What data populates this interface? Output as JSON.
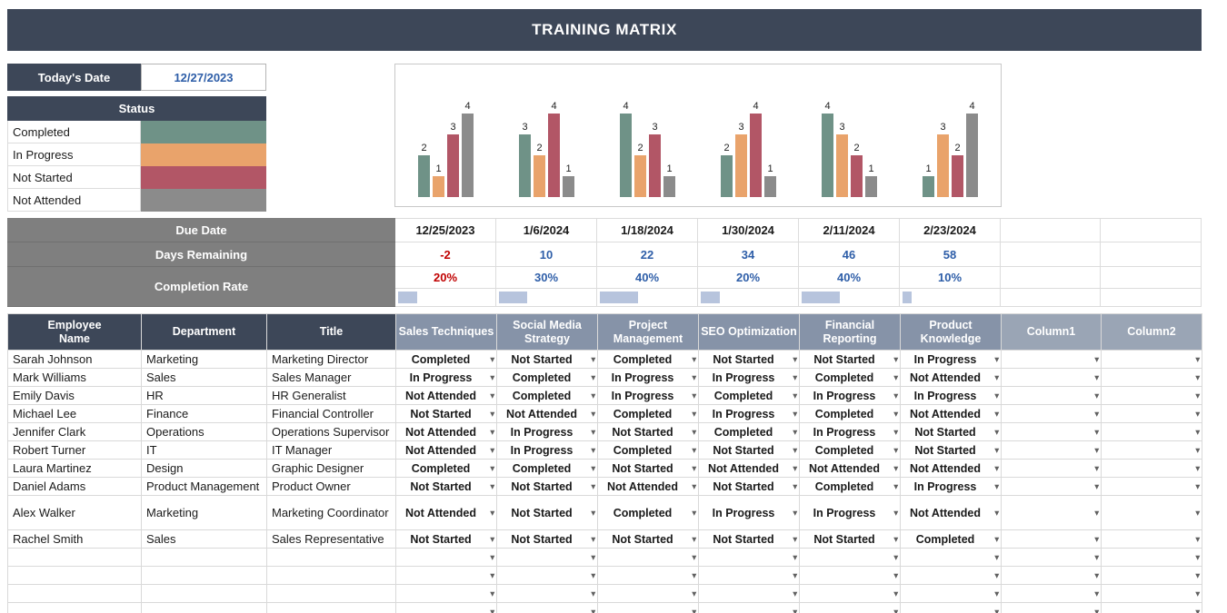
{
  "title": "TRAINING MATRIX",
  "today": {
    "label": "Today's Date",
    "value": "12/27/2023"
  },
  "status_legend": {
    "header": "Status",
    "items": [
      {
        "label": "Completed",
        "color": "#6f9287"
      },
      {
        "label": "In Progress",
        "color": "#e9a36b"
      },
      {
        "label": "Not Started",
        "color": "#b25666"
      },
      {
        "label": "Not Attended",
        "color": "#8b8b8b"
      }
    ]
  },
  "chart_data": {
    "type": "bar",
    "title": "",
    "categories": [
      "Sales Techniques",
      "Social Media Strategy",
      "Project Management",
      "SEO Optimization",
      "Financial Reporting",
      "Product Knowledge"
    ],
    "series": [
      {
        "name": "Completed",
        "color": "#6f9287",
        "values": [
          2,
          3,
          4,
          2,
          4,
          1
        ]
      },
      {
        "name": "In Progress",
        "color": "#e9a36b",
        "values": [
          1,
          2,
          2,
          3,
          3,
          3
        ]
      },
      {
        "name": "Not Started",
        "color": "#b25666",
        "values": [
          3,
          4,
          3,
          4,
          2,
          2
        ]
      },
      {
        "name": "Not Attended",
        "color": "#8b8b8b",
        "values": [
          4,
          1,
          1,
          1,
          1,
          4
        ]
      }
    ],
    "ylim": [
      0,
      4
    ],
    "data_labels": true,
    "legend_position": "none",
    "grid": false
  },
  "summary": {
    "due_date": {
      "label": "Due Date",
      "values": [
        "12/25/2023",
        "1/6/2024",
        "1/18/2024",
        "1/30/2024",
        "2/11/2024",
        "2/23/2024"
      ],
      "colors": [
        "#1a1a1a",
        "#1a1a1a",
        "#1a1a1a",
        "#1a1a1a",
        "#1a1a1a",
        "#1a1a1a"
      ]
    },
    "days_remaining": {
      "label": "Days Remaining",
      "values": [
        "-2",
        "10",
        "22",
        "34",
        "46",
        "58"
      ],
      "colors": [
        "#c00000",
        "#2e5ea8",
        "#2e5ea8",
        "#2e5ea8",
        "#2e5ea8",
        "#2e5ea8"
      ]
    },
    "completion_rate": {
      "label": "Completion Rate",
      "values": [
        "20%",
        "30%",
        "40%",
        "20%",
        "40%",
        "10%"
      ],
      "colors": [
        "#c00000",
        "#2e5ea8",
        "#2e5ea8",
        "#2e5ea8",
        "#2e5ea8",
        "#2e5ea8"
      ],
      "bar_percents": [
        20,
        30,
        40,
        20,
        40,
        10
      ],
      "bar_color": "#b7c4dd"
    }
  },
  "table": {
    "fixed_headers": [
      "Employee\nName",
      "Department",
      "Title"
    ],
    "course_headers": [
      "Sales Techniques",
      "Social Media Strategy",
      "Project Management",
      "SEO Optimization",
      "Financial Reporting",
      "Product Knowledge"
    ],
    "extra_headers": [
      "Column1",
      "Column2"
    ],
    "rows": [
      {
        "name": "Sarah Johnson",
        "department": "Marketing",
        "title": "Marketing Director",
        "statuses": [
          "Completed",
          "Not Started",
          "Completed",
          "Not Started",
          "Not Started",
          "In Progress"
        ]
      },
      {
        "name": "Mark Williams",
        "department": "Sales",
        "title": "Sales Manager",
        "statuses": [
          "In Progress",
          "Completed",
          "In Progress",
          "In Progress",
          "Completed",
          "Not Attended"
        ]
      },
      {
        "name": "Emily Davis",
        "department": "HR",
        "title": "HR Generalist",
        "statuses": [
          "Not Attended",
          "Completed",
          "In Progress",
          "Completed",
          "In Progress",
          "In Progress"
        ]
      },
      {
        "name": "Michael Lee",
        "department": "Finance",
        "title": "Financial Controller",
        "statuses": [
          "Not Started",
          "Not Attended",
          "Completed",
          "In Progress",
          "Completed",
          "Not Attended"
        ]
      },
      {
        "name": "Jennifer Clark",
        "department": "Operations",
        "title": "Operations Supervisor",
        "statuses": [
          "Not Attended",
          "In Progress",
          "Not Started",
          "Completed",
          "In Progress",
          "Not Started"
        ]
      },
      {
        "name": "Robert Turner",
        "department": "IT",
        "title": "IT Manager",
        "statuses": [
          "Not Attended",
          "In Progress",
          "Completed",
          "Not Started",
          "Completed",
          "Not Started"
        ]
      },
      {
        "name": "Laura Martinez",
        "department": "Design",
        "title": "Graphic Designer",
        "statuses": [
          "Completed",
          "Completed",
          "Not Started",
          "Not Attended",
          "Not Attended",
          "Not Attended"
        ]
      },
      {
        "name": "Daniel Adams",
        "department": "Product Management",
        "title": "Product Owner",
        "statuses": [
          "Not Started",
          "Not Started",
          "Not Attended",
          "Not Started",
          "Completed",
          "In Progress"
        ]
      },
      {
        "name": "Alex Walker",
        "department": "Marketing",
        "title": "Marketing Coordinator",
        "statuses": [
          "Not Attended",
          "Not Started",
          "Completed",
          "In Progress",
          "In Progress",
          "Not Attended"
        ]
      },
      {
        "name": "Rachel Smith",
        "department": "Sales",
        "title": "Sales Representative",
        "statuses": [
          "Not Started",
          "Not Started",
          "Not Started",
          "Not Started",
          "Not Started",
          "Completed"
        ]
      }
    ],
    "empty_row_count": 4
  }
}
